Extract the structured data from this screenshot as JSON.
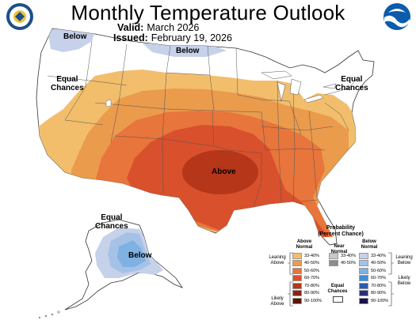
{
  "header": {
    "title": "Monthly Temperature Outlook",
    "valid_label": "Valid:",
    "valid_value": "March 2026",
    "issued_label": "Issued:",
    "issued_value": "February 19, 2026"
  },
  "logos": {
    "left_icon": "department-of-commerce-seal",
    "right_icon": "noaa-logo",
    "left_color": "#1b4f8c",
    "right_color": "#0b5cab"
  },
  "map_labels": {
    "below_northwest": "Below",
    "below_north": "Below",
    "equal_west": [
      "Equal",
      "Chances"
    ],
    "equal_east": [
      "Equal",
      "Chances"
    ],
    "above_center": "Above",
    "equal_alaska": [
      "Equal",
      "Chances"
    ],
    "below_alaska": "Below"
  },
  "colors": {
    "above_33_40": "#f2be6c",
    "above_40_50": "#eb9b4c",
    "above_50_60": "#e8753b",
    "above_60_70": "#d9502c",
    "above_70_80": "#b53619",
    "above_80_90": "#8a240e",
    "above_90_100": "#5a1405",
    "near_33_40": "#c8c8c8",
    "near_40_50": "#8c8c8c",
    "below_33_40": "#c6d1ea",
    "below_40_50": "#a5c2e6",
    "below_50_60": "#7fb1e2",
    "below_60_70": "#3d8fd9",
    "below_70_80": "#2a5cb0",
    "below_80_90": "#2c2c7e",
    "below_90_100": "#1a1148"
  },
  "legend": {
    "title": [
      "Probability",
      "(Percent Chance)"
    ],
    "above_header": [
      "Above",
      "Normal"
    ],
    "near_header": [
      "Near",
      "Normal"
    ],
    "below_header": [
      "Below",
      "Normal"
    ],
    "equal_header": [
      "Equal",
      "Chances"
    ],
    "leaning_above": [
      "Leaning",
      "Above"
    ],
    "likely_above": [
      "Likely",
      "Above"
    ],
    "leaning_below": [
      "Leaning",
      "Below"
    ],
    "likely_below": [
      "Likely",
      "Below"
    ],
    "above_ranges": [
      "33-40%",
      "40-50%",
      "50-60%",
      "60-70%",
      "70-80%",
      "80-90%",
      "90-100%"
    ],
    "near_ranges": [
      "33-40%",
      "40-50%"
    ],
    "below_ranges": [
      "33-40%",
      "40-50%",
      "50-60%",
      "60-70%",
      "70-80%",
      "80-90%",
      "90-100%"
    ]
  }
}
